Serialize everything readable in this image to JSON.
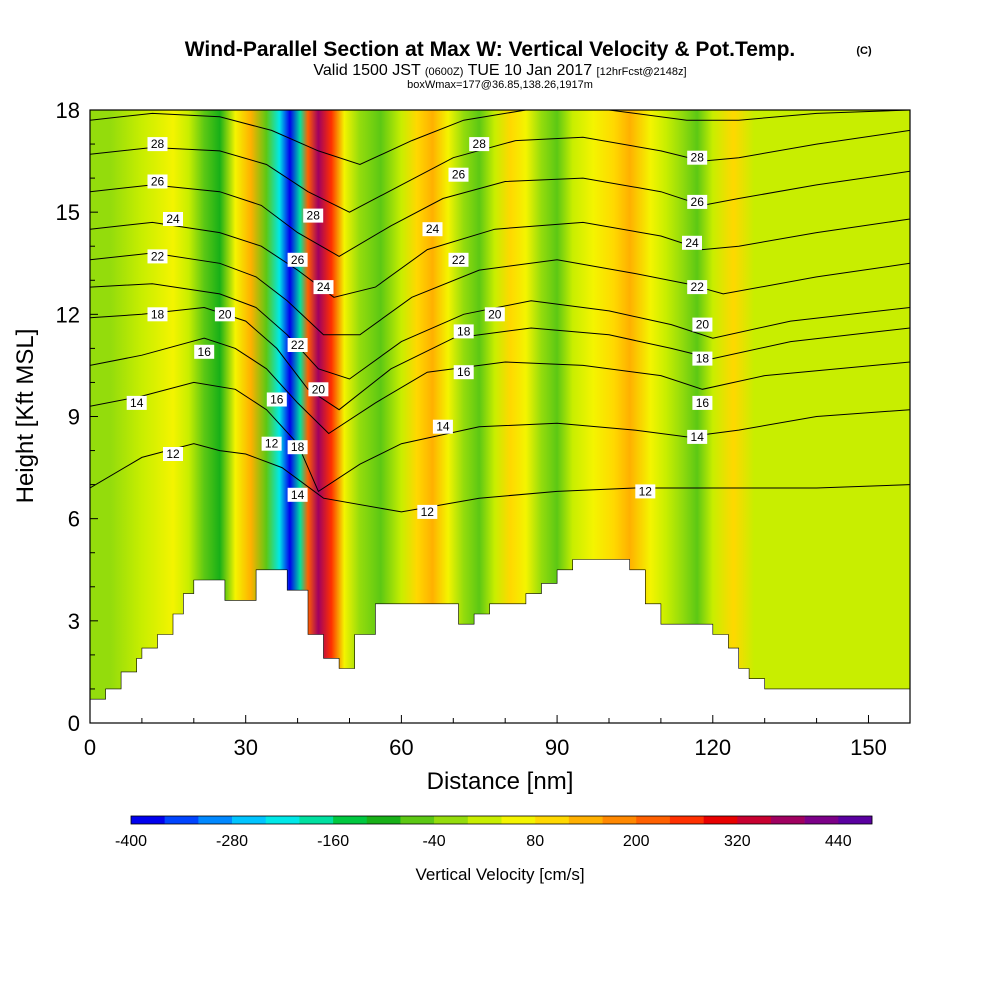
{
  "header": {
    "title": "Wind-Parallel Section at Max W: Vertical Velocity & Pot.Temp.",
    "copyright": "(C)",
    "valid_a": "Valid 1500 JST",
    "valid_b": "(0600Z)",
    "valid_c": "TUE 10 Jan 2017",
    "valid_d": "[12hrFcst@2148z]",
    "box_info": "boxWmax=177@36.85,138.26,1917m"
  },
  "chart_data": {
    "type": "heatmap",
    "xlabel": "Distance [nm]",
    "ylabel": "Height [Kft MSL]",
    "xlim": [
      0,
      158
    ],
    "ylim": [
      0,
      18
    ],
    "x_ticks": [
      0,
      30,
      60,
      90,
      120,
      150
    ],
    "x_tick_labels": [
      "0",
      "30",
      "60",
      "90",
      "120",
      "150"
    ],
    "y_ticks": [
      0,
      3,
      6,
      9,
      12,
      15,
      18
    ],
    "y_tick_labels": [
      "0",
      "3",
      "6",
      "9",
      "12",
      "15",
      "18"
    ],
    "colorbar": {
      "label": "Vertical Velocity [cm/s]",
      "min": -400,
      "max": 480,
      "step": 40,
      "tick_values": [
        -400,
        -280,
        -160,
        -40,
        80,
        200,
        320,
        440
      ],
      "tick_labels": [
        "-400",
        "-280",
        "-160",
        "-40",
        "80",
        "200",
        "320",
        "440"
      ],
      "colors": [
        "#0000ee",
        "#0044ff",
        "#0088ff",
        "#00c4ff",
        "#00e8e8",
        "#00e0a0",
        "#00c840",
        "#18b018",
        "#5cc814",
        "#94dc0c",
        "#c8ee00",
        "#f4f400",
        "#ffd800",
        "#ffb000",
        "#ff8800",
        "#ff6000",
        "#ff3000",
        "#e80000",
        "#c80030",
        "#a00060",
        "#7c0088",
        "#5a00a0"
      ]
    },
    "velocity_bands": [
      {
        "x": 0,
        "w": -40
      },
      {
        "x": 4,
        "w": -40
      },
      {
        "x": 10,
        "w": 0
      },
      {
        "x": 16,
        "w": 40
      },
      {
        "x": 19,
        "w": 0
      },
      {
        "x": 22,
        "w": -80
      },
      {
        "x": 25,
        "w": -120
      },
      {
        "x": 28,
        "w": 40
      },
      {
        "x": 31,
        "w": 120
      },
      {
        "x": 34,
        "w": -80
      },
      {
        "x": 36.5,
        "w": -240
      },
      {
        "x": 38.5,
        "w": -400
      },
      {
        "x": 40.5,
        "w": -200
      },
      {
        "x": 42,
        "w": 200
      },
      {
        "x": 44,
        "w": 360
      },
      {
        "x": 46.5,
        "w": 240
      },
      {
        "x": 49,
        "w": 40
      },
      {
        "x": 52,
        "w": -40
      },
      {
        "x": 56,
        "w": -80
      },
      {
        "x": 60,
        "w": 0
      },
      {
        "x": 63,
        "w": 80
      },
      {
        "x": 66,
        "w": 120
      },
      {
        "x": 69,
        "w": 40
      },
      {
        "x": 72,
        "w": -40
      },
      {
        "x": 75,
        "w": -80
      },
      {
        "x": 78,
        "w": 0
      },
      {
        "x": 81,
        "w": 80
      },
      {
        "x": 84,
        "w": 40
      },
      {
        "x": 87,
        "w": -40
      },
      {
        "x": 90,
        "w": -80
      },
      {
        "x": 93,
        "w": 0
      },
      {
        "x": 97,
        "w": 40
      },
      {
        "x": 101,
        "w": 80
      },
      {
        "x": 104,
        "w": 120
      },
      {
        "x": 108,
        "w": 40
      },
      {
        "x": 111,
        "w": 0
      },
      {
        "x": 114,
        "w": -40
      },
      {
        "x": 117,
        "w": -80
      },
      {
        "x": 120,
        "w": 0
      },
      {
        "x": 124,
        "w": 80
      },
      {
        "x": 128,
        "w": 0
      },
      {
        "x": 134,
        "w": 0
      },
      {
        "x": 140,
        "w": 0
      },
      {
        "x": 146,
        "w": 0
      },
      {
        "x": 152,
        "w": 0
      },
      {
        "x": 158,
        "w": 0
      }
    ],
    "terrain": [
      [
        0,
        0.7
      ],
      [
        3,
        0.7
      ],
      [
        3,
        1.0
      ],
      [
        6,
        1.0
      ],
      [
        6,
        1.5
      ],
      [
        9,
        1.5
      ],
      [
        9,
        1.9
      ],
      [
        10,
        1.9
      ],
      [
        10,
        2.2
      ],
      [
        13,
        2.2
      ],
      [
        13,
        2.6
      ],
      [
        16,
        2.6
      ],
      [
        16,
        3.2
      ],
      [
        18,
        3.2
      ],
      [
        18,
        3.8
      ],
      [
        20,
        3.8
      ],
      [
        20,
        4.2
      ],
      [
        26,
        4.2
      ],
      [
        26,
        3.6
      ],
      [
        32,
        3.6
      ],
      [
        32,
        4.5
      ],
      [
        38,
        4.5
      ],
      [
        38,
        3.9
      ],
      [
        42,
        3.9
      ],
      [
        42,
        2.6
      ],
      [
        45,
        2.6
      ],
      [
        45,
        1.9
      ],
      [
        48,
        1.9
      ],
      [
        48,
        1.6
      ],
      [
        51,
        1.6
      ],
      [
        51,
        2.6
      ],
      [
        55,
        2.6
      ],
      [
        55,
        3.5
      ],
      [
        71,
        3.5
      ],
      [
        71,
        2.9
      ],
      [
        74,
        2.9
      ],
      [
        74,
        3.2
      ],
      [
        77,
        3.2
      ],
      [
        77,
        3.5
      ],
      [
        84,
        3.5
      ],
      [
        84,
        3.8
      ],
      [
        87,
        3.8
      ],
      [
        87,
        4.1
      ],
      [
        90,
        4.1
      ],
      [
        90,
        4.5
      ],
      [
        93,
        4.5
      ],
      [
        93,
        4.8
      ],
      [
        104,
        4.8
      ],
      [
        104,
        4.5
      ],
      [
        107,
        4.5
      ],
      [
        107,
        3.5
      ],
      [
        110,
        3.5
      ],
      [
        110,
        2.9
      ],
      [
        120,
        2.9
      ],
      [
        120,
        2.6
      ],
      [
        123,
        2.6
      ],
      [
        123,
        2.2
      ],
      [
        125,
        2.2
      ],
      [
        125,
        1.6
      ],
      [
        127,
        1.6
      ],
      [
        127,
        1.3
      ],
      [
        130,
        1.3
      ],
      [
        130,
        1.0
      ],
      [
        158,
        1.0
      ]
    ],
    "theta_contours": [
      {
        "value": 12,
        "pts": [
          [
            0,
            6.9
          ],
          [
            10,
            7.8
          ],
          [
            20,
            8.2
          ],
          [
            25,
            8.0
          ],
          [
            30,
            7.9
          ],
          [
            37,
            7.5
          ],
          [
            45,
            6.6
          ],
          [
            60,
            6.2
          ],
          [
            75,
            6.6
          ],
          [
            90,
            6.8
          ],
          [
            105,
            6.9
          ],
          [
            120,
            6.9
          ],
          [
            140,
            6.9
          ],
          [
            158,
            7.0
          ]
        ],
        "labels": [
          {
            "text": "12",
            "x": 16,
            "y": 7.9
          },
          {
            "text": "12",
            "x": 35,
            "y": 8.2
          },
          {
            "text": "12",
            "x": 65,
            "y": 6.2
          },
          {
            "text": "12",
            "x": 107,
            "y": 6.8
          }
        ]
      },
      {
        "value": 14,
        "pts": [
          [
            0,
            9.3
          ],
          [
            10,
            9.6
          ],
          [
            20,
            10.0
          ],
          [
            28,
            9.8
          ],
          [
            34,
            9.2
          ],
          [
            40,
            8.2
          ],
          [
            44,
            6.8
          ],
          [
            52,
            7.6
          ],
          [
            60,
            8.2
          ],
          [
            75,
            8.7
          ],
          [
            90,
            8.8
          ],
          [
            105,
            8.6
          ],
          [
            115,
            8.4
          ],
          [
            125,
            8.6
          ],
          [
            140,
            9.0
          ],
          [
            158,
            9.2
          ]
        ],
        "labels": [
          {
            "text": "14",
            "x": 9,
            "y": 9.4
          },
          {
            "text": "14",
            "x": 40,
            "y": 6.7
          },
          {
            "text": "14",
            "x": 68,
            "y": 8.7
          },
          {
            "text": "14",
            "x": 117,
            "y": 8.4
          }
        ]
      },
      {
        "value": 16,
        "pts": [
          [
            0,
            10.5
          ],
          [
            10,
            10.8
          ],
          [
            22,
            11.3
          ],
          [
            28,
            11.0
          ],
          [
            34,
            10.4
          ],
          [
            40,
            9.4
          ],
          [
            46,
            8.5
          ],
          [
            55,
            9.4
          ],
          [
            65,
            10.3
          ],
          [
            80,
            10.6
          ],
          [
            95,
            10.5
          ],
          [
            110,
            10.2
          ],
          [
            118,
            9.8
          ],
          [
            130,
            10.2
          ],
          [
            158,
            10.6
          ]
        ],
        "labels": [
          {
            "text": "16",
            "x": 22,
            "y": 10.9
          },
          {
            "text": "16",
            "x": 36,
            "y": 9.5
          },
          {
            "text": "16",
            "x": 72,
            "y": 10.3
          },
          {
            "text": "16",
            "x": 118,
            "y": 9.4
          }
        ]
      },
      {
        "value": 18,
        "pts": [
          [
            0,
            11.9
          ],
          [
            10,
            12.0
          ],
          [
            22,
            12.2
          ],
          [
            30,
            11.8
          ],
          [
            36,
            11.0
          ],
          [
            42,
            9.8
          ],
          [
            48,
            9.2
          ],
          [
            58,
            10.4
          ],
          [
            70,
            11.3
          ],
          [
            85,
            11.6
          ],
          [
            100,
            11.4
          ],
          [
            112,
            11.0
          ],
          [
            120,
            10.7
          ],
          [
            135,
            11.2
          ],
          [
            158,
            11.6
          ]
        ],
        "labels": [
          {
            "text": "18",
            "x": 13,
            "y": 12.0
          },
          {
            "text": "18",
            "x": 40,
            "y": 8.1
          },
          {
            "text": "18",
            "x": 72,
            "y": 11.5
          },
          {
            "text": "18",
            "x": 118,
            "y": 10.7
          }
        ]
      },
      {
        "value": 20,
        "pts": [
          [
            0,
            12.8
          ],
          [
            12,
            12.9
          ],
          [
            25,
            12.6
          ],
          [
            32,
            12.2
          ],
          [
            38,
            11.4
          ],
          [
            44,
            10.4
          ],
          [
            50,
            10.1
          ],
          [
            60,
            11.2
          ],
          [
            72,
            12.0
          ],
          [
            85,
            12.4
          ],
          [
            100,
            12.1
          ],
          [
            112,
            11.7
          ],
          [
            120,
            11.3
          ],
          [
            135,
            11.8
          ],
          [
            158,
            12.2
          ]
        ],
        "labels": [
          {
            "text": "20",
            "x": 26,
            "y": 12.0
          },
          {
            "text": "20",
            "x": 44,
            "y": 9.8
          },
          {
            "text": "20",
            "x": 78,
            "y": 12.0
          },
          {
            "text": "20",
            "x": 118,
            "y": 11.7
          }
        ]
      },
      {
        "value": 22,
        "pts": [
          [
            0,
            13.6
          ],
          [
            12,
            13.8
          ],
          [
            25,
            13.5
          ],
          [
            32,
            13.1
          ],
          [
            38,
            12.4
          ],
          [
            45,
            11.4
          ],
          [
            52,
            11.4
          ],
          [
            62,
            12.5
          ],
          [
            75,
            13.3
          ],
          [
            90,
            13.6
          ],
          [
            105,
            13.2
          ],
          [
            115,
            12.9
          ],
          [
            122,
            12.6
          ],
          [
            140,
            13.1
          ],
          [
            158,
            13.5
          ]
        ],
        "labels": [
          {
            "text": "22",
            "x": 13,
            "y": 13.7
          },
          {
            "text": "22",
            "x": 40,
            "y": 11.1
          },
          {
            "text": "22",
            "x": 71,
            "y": 13.6
          },
          {
            "text": "22",
            "x": 117,
            "y": 12.8
          }
        ]
      },
      {
        "value": 24,
        "pts": [
          [
            0,
            14.5
          ],
          [
            12,
            14.7
          ],
          [
            25,
            14.4
          ],
          [
            33,
            14.0
          ],
          [
            40,
            13.3
          ],
          [
            47,
            12.5
          ],
          [
            55,
            12.8
          ],
          [
            65,
            13.9
          ],
          [
            78,
            14.5
          ],
          [
            95,
            14.7
          ],
          [
            110,
            14.3
          ],
          [
            118,
            13.9
          ],
          [
            125,
            14.0
          ],
          [
            140,
            14.4
          ],
          [
            158,
            14.8
          ]
        ],
        "labels": [
          {
            "text": "24",
            "x": 16,
            "y": 14.8
          },
          {
            "text": "24",
            "x": 45,
            "y": 12.8
          },
          {
            "text": "24",
            "x": 66,
            "y": 14.5
          },
          {
            "text": "24",
            "x": 116,
            "y": 14.1
          }
        ]
      },
      {
        "value": 26,
        "pts": [
          [
            0,
            15.6
          ],
          [
            12,
            15.8
          ],
          [
            25,
            15.6
          ],
          [
            33,
            15.2
          ],
          [
            40,
            14.4
          ],
          [
            48,
            13.7
          ],
          [
            58,
            14.6
          ],
          [
            68,
            15.4
          ],
          [
            80,
            15.9
          ],
          [
            95,
            16.0
          ],
          [
            110,
            15.6
          ],
          [
            118,
            15.2
          ],
          [
            125,
            15.4
          ],
          [
            140,
            15.8
          ],
          [
            158,
            16.2
          ]
        ],
        "labels": [
          {
            "text": "26",
            "x": 13,
            "y": 15.9
          },
          {
            "text": "26",
            "x": 40,
            "y": 13.6
          },
          {
            "text": "26",
            "x": 71,
            "y": 16.1
          },
          {
            "text": "26",
            "x": 117,
            "y": 15.3
          }
        ]
      },
      {
        "value": 28,
        "pts": [
          [
            0,
            16.7
          ],
          [
            12,
            16.9
          ],
          [
            25,
            16.8
          ],
          [
            34,
            16.4
          ],
          [
            42,
            15.6
          ],
          [
            50,
            15.0
          ],
          [
            60,
            15.8
          ],
          [
            70,
            16.6
          ],
          [
            82,
            17.1
          ],
          [
            95,
            17.2
          ],
          [
            110,
            16.8
          ],
          [
            118,
            16.5
          ],
          [
            125,
            16.6
          ],
          [
            140,
            17.0
          ],
          [
            158,
            17.4
          ]
        ],
        "labels": [
          {
            "text": "28",
            "x": 13,
            "y": 17.0
          },
          {
            "text": "28",
            "x": 43,
            "y": 14.9
          },
          {
            "text": "28",
            "x": 75,
            "y": 17.0
          },
          {
            "text": "28",
            "x": 117,
            "y": 16.6
          }
        ]
      },
      {
        "value": 30,
        "pts": [
          [
            0,
            17.7
          ],
          [
            12,
            17.9
          ],
          [
            25,
            17.8
          ],
          [
            35,
            17.4
          ],
          [
            44,
            16.8
          ],
          [
            52,
            16.4
          ],
          [
            62,
            17.1
          ],
          [
            72,
            17.7
          ],
          [
            84,
            18.0
          ],
          [
            100,
            18.0
          ],
          [
            115,
            17.7
          ],
          [
            125,
            17.7
          ],
          [
            140,
            17.9
          ],
          [
            158,
            18.0
          ]
        ],
        "labels": []
      }
    ]
  }
}
